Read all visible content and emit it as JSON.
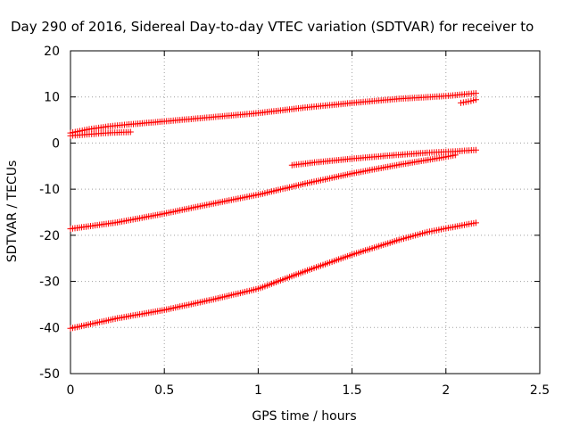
{
  "chart_data": {
    "type": "scatter",
    "title": "Day 290 of 2016, Sidereal Day-to-day VTEC variation (SDTVAR) for receiver to",
    "xlabel": "GPS time / hours",
    "ylabel": "SDTVAR / TECUs",
    "xlim": [
      0,
      2.5
    ],
    "ylim": [
      -50,
      20
    ],
    "xticks": [
      "0",
      "0.5",
      "1",
      "1.5",
      "2",
      "2.5"
    ],
    "yticks": [
      "20",
      "10",
      "0",
      "-10",
      "-20",
      "-30",
      "-40",
      "-50"
    ],
    "xtick_values": [
      0,
      0.5,
      1,
      1.5,
      2,
      2.5
    ],
    "ytick_values": [
      20,
      10,
      0,
      -10,
      -20,
      -30,
      -40,
      -50
    ],
    "grid": true,
    "marker": "plus",
    "color": "#ff0000",
    "series": [
      {
        "name": "track-1",
        "points": [
          [
            0,
            2.2
          ],
          [
            0.1,
            3.0
          ],
          [
            0.2,
            3.6
          ],
          [
            0.3,
            4.0
          ],
          [
            0.5,
            4.7
          ],
          [
            0.75,
            5.6
          ],
          [
            1.0,
            6.5
          ],
          [
            1.25,
            7.7
          ],
          [
            1.5,
            8.7
          ],
          [
            1.75,
            9.6
          ],
          [
            2.0,
            10.2
          ],
          [
            2.16,
            10.8
          ]
        ]
      },
      {
        "name": "track-2",
        "points": [
          [
            0,
            1.6
          ],
          [
            0.1,
            1.9
          ],
          [
            0.2,
            2.2
          ],
          [
            0.32,
            2.4
          ]
        ]
      },
      {
        "name": "track-3",
        "points": [
          [
            2.08,
            8.7
          ],
          [
            2.12,
            9.0
          ],
          [
            2.16,
            9.4
          ]
        ]
      },
      {
        "name": "track-4",
        "points": [
          [
            1.18,
            -4.8
          ],
          [
            1.3,
            -4.2
          ],
          [
            1.5,
            -3.4
          ],
          [
            1.7,
            -2.7
          ],
          [
            1.9,
            -2.1
          ],
          [
            2.05,
            -1.8
          ],
          [
            2.16,
            -1.5
          ]
        ]
      },
      {
        "name": "track-5",
        "points": [
          [
            0,
            -18.6
          ],
          [
            0.25,
            -17.2
          ],
          [
            0.5,
            -15.3
          ],
          [
            0.75,
            -13.2
          ],
          [
            1.0,
            -11.2
          ],
          [
            1.25,
            -8.8
          ],
          [
            1.5,
            -6.6
          ],
          [
            1.75,
            -4.7
          ],
          [
            2.0,
            -3.0
          ],
          [
            2.05,
            -2.6
          ]
        ]
      },
      {
        "name": "track-6",
        "points": [
          [
            0,
            -40.2
          ],
          [
            0.25,
            -38.0
          ],
          [
            0.5,
            -36.2
          ],
          [
            0.75,
            -34.0
          ],
          [
            1.0,
            -31.6
          ],
          [
            1.25,
            -27.8
          ],
          [
            1.5,
            -24.2
          ],
          [
            1.75,
            -21.0
          ],
          [
            1.9,
            -19.3
          ],
          [
            2.0,
            -18.5
          ],
          [
            2.16,
            -17.3
          ]
        ]
      }
    ]
  }
}
